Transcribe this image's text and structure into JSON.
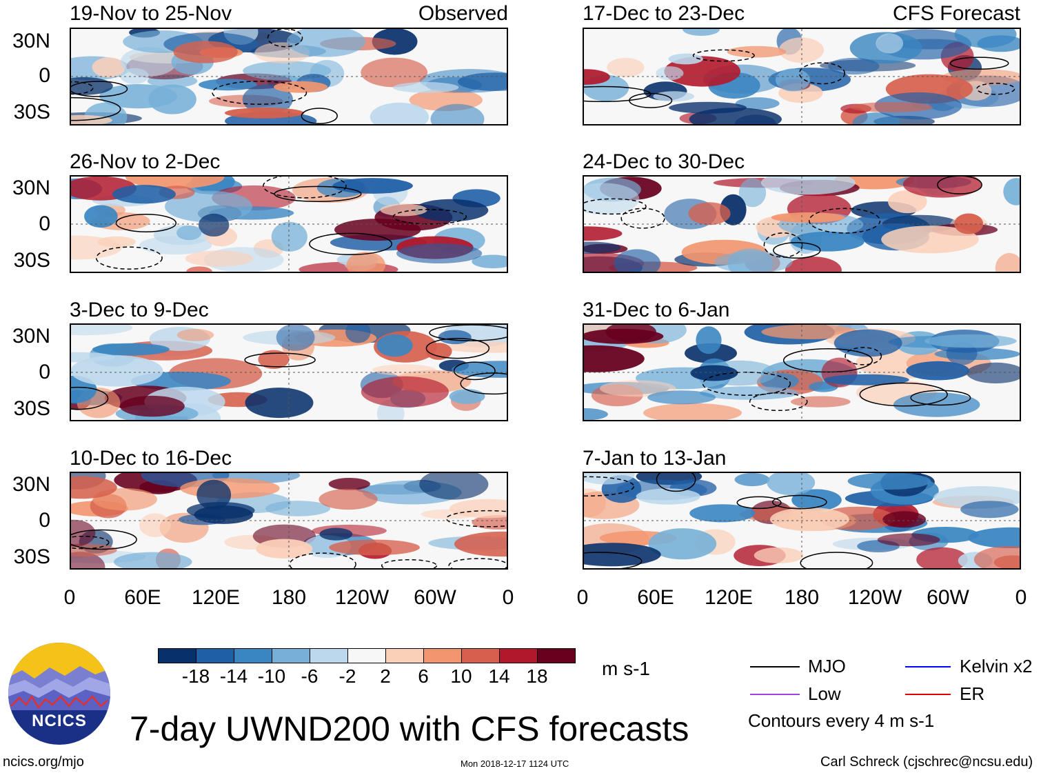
{
  "chart_data": {
    "type": "heatmap",
    "title": "7-day UWND200 with CFS forecasts",
    "units": "m s-1",
    "lat_ticks": [
      "30N",
      "0",
      "30S"
    ],
    "lon_ticks": [
      "0",
      "60E",
      "120E",
      "180",
      "120W",
      "60W",
      "0"
    ],
    "observed_label": "Observed",
    "forecast_label": "CFS Forecast",
    "panels_observed": [
      {
        "period": "19-Nov to 25-Nov"
      },
      {
        "period": "26-Nov to 2-Dec"
      },
      {
        "period": "3-Dec to 9-Dec"
      },
      {
        "period": "10-Dec to 16-Dec"
      }
    ],
    "panels_forecast": [
      {
        "period": "17-Dec to 23-Dec"
      },
      {
        "period": "24-Dec to 30-Dec"
      },
      {
        "period": "31-Dec to 6-Jan"
      },
      {
        "period": "7-Jan to 13-Jan"
      }
    ],
    "colorbar": {
      "labels": [
        "-18",
        "-14",
        "-10",
        "-6",
        "-2",
        "2",
        "6",
        "10",
        "14",
        "18"
      ],
      "colors": [
        "#08306b",
        "#1f5fa6",
        "#3a86c2",
        "#76b0d8",
        "#bcd8ec",
        "#f7f7f7",
        "#fbd0b9",
        "#f2966f",
        "#d6604d",
        "#b2182b",
        "#67001f"
      ]
    },
    "legend": [
      {
        "label": "MJO",
        "color": "#000000"
      },
      {
        "label": "Kelvin x2",
        "color": "#0000ff"
      },
      {
        "label": "Low",
        "color": "#a040e0"
      },
      {
        "label": "ER",
        "color": "#e00000"
      }
    ],
    "contour_note": "Contours every 4 m s-1"
  },
  "logo_text": "NCICS",
  "footer": {
    "url": "ncics.org/mjo",
    "timestamp": "Mon 2018-12-17 1124 UTC",
    "author": "Carl Schreck (cjschrec@ncsu.edu)"
  }
}
